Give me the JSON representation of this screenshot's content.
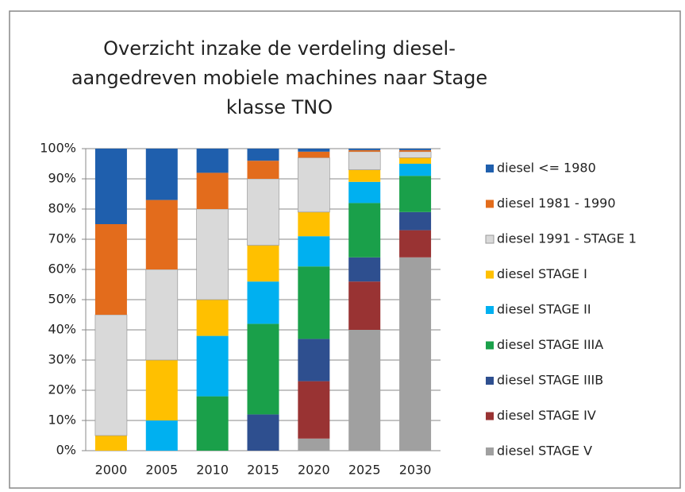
{
  "chart_data": {
    "type": "stacked_bar",
    "title": [
      "Overzicht inzake de verdeling diesel-",
      "aangedreven mobiele machines naar Stage",
      "klasse TNO"
    ],
    "categories": [
      "2000",
      "2005",
      "2010",
      "2015",
      "2020",
      "2025",
      "2030"
    ],
    "series": [
      {
        "name": "diesel <= 1980",
        "color": "#1f5fad",
        "values": [
          25,
          17,
          8,
          4,
          1,
          0.5,
          0.5
        ]
      },
      {
        "name": "diesel 1981 - 1990",
        "color": "#e36c1c",
        "values": [
          30,
          23,
          12,
          6,
          2,
          0.5,
          0.5
        ]
      },
      {
        "name": "diesel 1991 - STAGE 1",
        "color": "#d9d9d9",
        "values": [
          40,
          30,
          30,
          22,
          18,
          6,
          2
        ]
      },
      {
        "name": "diesel STAGE I",
        "color": "#ffc000",
        "values": [
          5,
          20,
          12,
          12,
          8,
          4,
          2
        ]
      },
      {
        "name": "diesel STAGE II",
        "color": "#00b0f0",
        "values": [
          0,
          10,
          20,
          14,
          10,
          7,
          4
        ]
      },
      {
        "name": "diesel STAGE IIIA",
        "color": "#1aa04a",
        "values": [
          0,
          0,
          18,
          30,
          24,
          18,
          12
        ]
      },
      {
        "name": "diesel STAGE IIIB",
        "color": "#2e4f8f",
        "values": [
          0,
          0,
          0,
          12,
          14,
          8,
          6
        ]
      },
      {
        "name": "diesel STAGE IV",
        "color": "#993333",
        "values": [
          0,
          0,
          0,
          0,
          19,
          16,
          9
        ]
      },
      {
        "name": "diesel STAGE V",
        "color": "#a0a0a0",
        "values": [
          0,
          0,
          0,
          0,
          4,
          40,
          64
        ]
      }
    ],
    "ylim": [
      0,
      100
    ],
    "yticks": [
      {
        "value": 0,
        "label": "0%"
      },
      {
        "value": 10,
        "label": "10%"
      },
      {
        "value": 20,
        "label": "20%"
      },
      {
        "value": 30,
        "label": "30%"
      },
      {
        "value": 40,
        "label": "40%"
      },
      {
        "value": 50,
        "label": "50%"
      },
      {
        "value": 60,
        "label": "60%"
      },
      {
        "value": 70,
        "label": "70%"
      },
      {
        "value": 80,
        "label": "80%"
      },
      {
        "value": 90,
        "label": "90%"
      },
      {
        "value": 100,
        "label": "100%"
      }
    ],
    "grid": true,
    "legend": "right"
  }
}
